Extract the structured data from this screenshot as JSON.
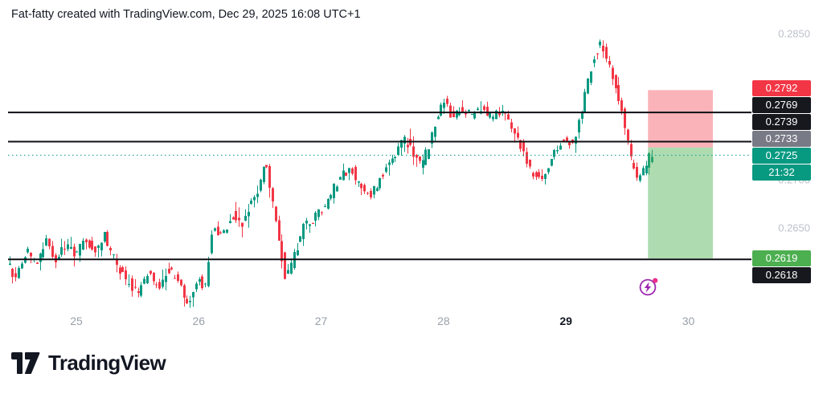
{
  "header": {
    "title": "Fat-fatty created with TradingView.com, Dec 29, 2025 16:08 UTC+1"
  },
  "logo": {
    "text": "TradingView"
  },
  "time_axis": {
    "labels": [
      {
        "label": "25",
        "emphasized": false
      },
      {
        "label": "26",
        "emphasized": false
      },
      {
        "label": "27",
        "emphasized": false
      },
      {
        "label": "28",
        "emphasized": false
      },
      {
        "label": "29",
        "emphasized": true
      },
      {
        "label": "30",
        "emphasized": false
      }
    ]
  },
  "price_axis": {
    "ticks": [
      {
        "label": "0.2850",
        "price": 0.285
      },
      {
        "label": "0.2700",
        "price": 0.27
      },
      {
        "label": "0.2650",
        "price": 0.265
      }
    ],
    "badges": [
      {
        "label": "0.2792",
        "price": 0.2792,
        "color": "#f23645",
        "role": "stop-loss"
      },
      {
        "label": "0.2769",
        "price": 0.2769,
        "color": "#16181e",
        "role": "level-line"
      },
      {
        "label": "0.2739",
        "price": 0.2739,
        "color": "#16181e",
        "role": "level-line"
      },
      {
        "label": "0.2733",
        "price": 0.2733,
        "color": "#787b86",
        "role": "entry"
      },
      {
        "label": "0.2725",
        "price": 0.2725,
        "color": "#089981",
        "role": "last-price"
      },
      {
        "label": "21:32",
        "price": null,
        "color": "#089981",
        "role": "countdown"
      },
      {
        "label": "0.2619",
        "price": 0.2619,
        "color": "#4caf50",
        "role": "take-profit"
      },
      {
        "label": "0.2618",
        "price": 0.2618,
        "color": "#16181e",
        "role": "level-line"
      }
    ]
  },
  "flash_marker": {
    "ring_color": "#9c27b0",
    "bolt_color": "#9c27b0",
    "dot_color": "#ec2e8a"
  },
  "chart_data": {
    "type": "candlestick",
    "title": "Fat-fatty created with TradingView.com, Dec 29, 2025 16:08 UTC+1",
    "x_labels": [
      "25",
      "26",
      "27",
      "28",
      "29",
      "30"
    ],
    "y_range": [
      0.2565,
      0.286
    ],
    "grid": false,
    "last_price": 0.2725,
    "last_price_line_style": "dotted",
    "countdown": "21:32",
    "horizontal_lines": [
      0.2769,
      0.2739,
      0.2618
    ],
    "short_position_tool": {
      "entry": 0.2733,
      "stop": 0.2792,
      "target": 0.2619,
      "x_start_day": 29.67,
      "x_end_day": 30.2
    },
    "colors": {
      "up": "#089981",
      "down": "#f23645",
      "stop_zone": "rgba(242,54,69,0.38)",
      "profit_zone": "rgba(76,175,80,0.45)",
      "level_line": "#0d0f14",
      "last_price_line": "#26a69a"
    },
    "candle_interval_days": 0.025,
    "noise_seed": 7,
    "price_path_anchors": [
      [
        24.44,
        0.2615
      ],
      [
        24.52,
        0.2598
      ],
      [
        24.6,
        0.2628
      ],
      [
        24.68,
        0.261
      ],
      [
        24.76,
        0.2636
      ],
      [
        24.84,
        0.2618
      ],
      [
        24.92,
        0.2634
      ],
      [
        25.0,
        0.2622
      ],
      [
        25.08,
        0.264
      ],
      [
        25.16,
        0.2626
      ],
      [
        25.24,
        0.2642
      ],
      [
        25.32,
        0.2618
      ],
      [
        25.42,
        0.2596
      ],
      [
        25.52,
        0.2584
      ],
      [
        25.6,
        0.2604
      ],
      [
        25.68,
        0.259
      ],
      [
        25.76,
        0.2608
      ],
      [
        25.84,
        0.2596
      ],
      [
        25.92,
        0.2574
      ],
      [
        26.0,
        0.2598
      ],
      [
        26.06,
        0.2588
      ],
      [
        26.12,
        0.2652
      ],
      [
        26.2,
        0.2642
      ],
      [
        26.28,
        0.2664
      ],
      [
        26.36,
        0.2654
      ],
      [
        26.44,
        0.2678
      ],
      [
        26.5,
        0.2692
      ],
      [
        26.55,
        0.2722
      ],
      [
        26.61,
        0.2678
      ],
      [
        26.67,
        0.2636
      ],
      [
        26.72,
        0.2598
      ],
      [
        26.78,
        0.2618
      ],
      [
        26.86,
        0.265
      ],
      [
        26.94,
        0.266
      ],
      [
        27.02,
        0.2668
      ],
      [
        27.1,
        0.2688
      ],
      [
        27.18,
        0.2705
      ],
      [
        27.25,
        0.2712
      ],
      [
        27.32,
        0.2694
      ],
      [
        27.4,
        0.2682
      ],
      [
        27.48,
        0.2698
      ],
      [
        27.56,
        0.2718
      ],
      [
        27.64,
        0.2733
      ],
      [
        27.7,
        0.2742
      ],
      [
        27.76,
        0.2726
      ],
      [
        27.83,
        0.2714
      ],
      [
        27.9,
        0.2738
      ],
      [
        27.96,
        0.2768
      ],
      [
        28.02,
        0.2782
      ],
      [
        28.08,
        0.2764
      ],
      [
        28.16,
        0.2773
      ],
      [
        28.24,
        0.2766
      ],
      [
        28.32,
        0.2776
      ],
      [
        28.4,
        0.2762
      ],
      [
        28.48,
        0.277
      ],
      [
        28.56,
        0.2758
      ],
      [
        28.63,
        0.2738
      ],
      [
        28.7,
        0.2714
      ],
      [
        28.78,
        0.27
      ],
      [
        28.86,
        0.2712
      ],
      [
        28.93,
        0.2732
      ],
      [
        29.0,
        0.2742
      ],
      [
        29.06,
        0.2734
      ],
      [
        29.12,
        0.2762
      ],
      [
        29.18,
        0.2798
      ],
      [
        29.24,
        0.2828
      ],
      [
        29.3,
        0.2842
      ],
      [
        29.36,
        0.2816
      ],
      [
        29.42,
        0.2792
      ],
      [
        29.48,
        0.2762
      ],
      [
        29.54,
        0.2722
      ],
      [
        29.6,
        0.27
      ],
      [
        29.65,
        0.2712
      ],
      [
        29.7,
        0.2725
      ]
    ]
  }
}
